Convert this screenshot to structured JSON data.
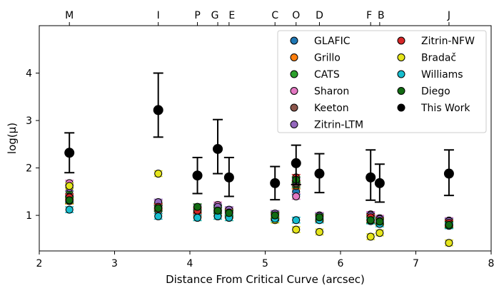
{
  "chart_data": {
    "type": "scatter",
    "title": "",
    "xlabel": "Distance From Critical Curve (arcsec)",
    "ylabel": "log(μ)",
    "xlim": [
      2,
      8
    ],
    "ylim": [
      0.25,
      5.0
    ],
    "x_ticks": [
      2,
      3,
      4,
      5,
      6,
      7,
      8
    ],
    "y_ticks": [
      1,
      2,
      3,
      4
    ],
    "grid": false,
    "legend_position": "top-right",
    "images": [
      {
        "label": "M",
        "x": 2.4
      },
      {
        "label": "I",
        "x": 3.58
      },
      {
        "label": "P",
        "x": 4.1
      },
      {
        "label": "G",
        "x": 4.37
      },
      {
        "label": "E",
        "x": 4.52
      },
      {
        "label": "C",
        "x": 5.13
      },
      {
        "label": "O",
        "x": 5.41
      },
      {
        "label": "D",
        "x": 5.72
      },
      {
        "label": "F",
        "x": 6.4
      },
      {
        "label": "B",
        "x": 6.52
      },
      {
        "label": "J",
        "x": 7.44
      }
    ],
    "series": [
      {
        "name": "GLAFIC",
        "color": "#1f77b4",
        "points": [
          [
            2.4,
            1.35
          ],
          [
            3.58,
            1.15
          ],
          [
            4.1,
            1.08
          ],
          [
            4.37,
            1.12
          ],
          [
            4.52,
            1.04
          ],
          [
            5.13,
            1.0
          ],
          [
            5.41,
            1.5
          ],
          [
            5.72,
            0.95
          ],
          [
            6.4,
            0.95
          ],
          [
            6.52,
            0.88
          ],
          [
            7.44,
            0.85
          ]
        ]
      },
      {
        "name": "Grillo",
        "color": "#ff7f0e",
        "points": [
          [
            2.4,
            1.3
          ],
          [
            3.58,
            1.1
          ],
          [
            4.1,
            1.02
          ],
          [
            4.37,
            1.05
          ],
          [
            4.52,
            1.0
          ],
          [
            5.13,
            0.96
          ],
          [
            5.41,
            1.62
          ],
          [
            5.72,
            0.92
          ],
          [
            6.4,
            0.92
          ],
          [
            6.52,
            0.85
          ],
          [
            7.44,
            0.82
          ]
        ]
      },
      {
        "name": "CATS",
        "color": "#2ca02c",
        "points": [
          [
            2.4,
            1.45
          ],
          [
            3.58,
            1.2
          ],
          [
            4.1,
            1.12
          ],
          [
            4.37,
            1.15
          ],
          [
            4.52,
            1.08
          ],
          [
            5.13,
            1.02
          ],
          [
            5.41,
            1.65
          ],
          [
            5.72,
            0.98
          ],
          [
            6.4,
            0.98
          ],
          [
            6.52,
            0.9
          ],
          [
            7.44,
            0.87
          ]
        ]
      },
      {
        "name": "Sharon",
        "color": "#e377c2",
        "points": [
          [
            2.4,
            1.68
          ],
          [
            3.58,
            1.25
          ],
          [
            4.1,
            1.08
          ],
          [
            4.37,
            1.22
          ],
          [
            4.52,
            1.1
          ],
          [
            5.13,
            1.03
          ],
          [
            5.41,
            1.4
          ],
          [
            5.72,
            1.0
          ],
          [
            6.4,
            1.02
          ],
          [
            6.52,
            0.94
          ],
          [
            7.44,
            0.89
          ]
        ]
      },
      {
        "name": "Keeton",
        "color": "#8c564b",
        "points": [
          [
            2.4,
            1.4
          ],
          [
            3.58,
            1.1
          ],
          [
            4.1,
            1.05
          ],
          [
            4.37,
            1.05
          ],
          [
            4.52,
            1.02
          ],
          [
            5.13,
            0.97
          ],
          [
            5.41,
            1.68
          ],
          [
            5.72,
            0.93
          ],
          [
            6.4,
            0.9
          ],
          [
            6.52,
            0.86
          ],
          [
            7.44,
            0.8
          ]
        ]
      },
      {
        "name": "Zitrin-LTM",
        "color": "#9467bd",
        "points": [
          [
            2.4,
            1.58
          ],
          [
            3.58,
            1.28
          ],
          [
            4.1,
            1.15
          ],
          [
            4.37,
            1.18
          ],
          [
            4.52,
            1.12
          ],
          [
            5.13,
            1.04
          ],
          [
            5.41,
            1.72
          ],
          [
            5.72,
            0.99
          ],
          [
            6.4,
            1.0
          ],
          [
            6.52,
            0.92
          ],
          [
            7.44,
            0.88
          ]
        ]
      },
      {
        "name": "Zitrin-NFW",
        "color": "#d62728",
        "points": [
          [
            2.4,
            1.38
          ],
          [
            3.58,
            1.18
          ],
          [
            4.1,
            1.1
          ],
          [
            4.37,
            1.1
          ],
          [
            4.52,
            1.06
          ],
          [
            5.13,
            0.99
          ],
          [
            5.41,
            1.8
          ],
          [
            5.72,
            0.95
          ],
          [
            6.4,
            0.96
          ],
          [
            6.52,
            0.88
          ],
          [
            7.44,
            0.84
          ]
        ]
      },
      {
        "name": "Bradač",
        "color": "#e5e51a",
        "points": [
          [
            2.4,
            1.62
          ],
          [
            3.58,
            1.88
          ],
          [
            4.1,
            0.95
          ],
          [
            4.37,
            0.98
          ],
          [
            4.52,
            0.95
          ],
          [
            5.13,
            0.9
          ],
          [
            5.41,
            0.7
          ],
          [
            5.72,
            0.65
          ],
          [
            6.4,
            0.55
          ],
          [
            6.52,
            0.63
          ],
          [
            7.44,
            0.42
          ]
        ]
      },
      {
        "name": "Williams",
        "color": "#17becf",
        "points": [
          [
            2.4,
            1.12
          ],
          [
            3.58,
            0.98
          ],
          [
            4.1,
            0.95
          ],
          [
            4.37,
            0.98
          ],
          [
            4.52,
            0.95
          ],
          [
            5.13,
            0.93
          ],
          [
            5.41,
            0.9
          ],
          [
            5.72,
            0.9
          ],
          [
            6.4,
            0.88
          ],
          [
            6.52,
            0.82
          ],
          [
            7.44,
            0.78
          ]
        ]
      },
      {
        "name": "Diego",
        "color": "#126b12",
        "points": [
          [
            2.4,
            1.32
          ],
          [
            3.58,
            1.15
          ],
          [
            4.1,
            1.18
          ],
          [
            4.37,
            1.1
          ],
          [
            4.52,
            1.05
          ],
          [
            5.13,
            1.0
          ],
          [
            5.41,
            1.75
          ],
          [
            5.72,
            0.96
          ],
          [
            6.4,
            0.9
          ],
          [
            6.52,
            0.87
          ],
          [
            7.44,
            0.8
          ]
        ]
      },
      {
        "name": "This Work",
        "color": "#000000",
        "points": [
          [
            2.4,
            2.32
          ],
          [
            3.58,
            3.22
          ],
          [
            4.1,
            1.84
          ],
          [
            4.37,
            2.4
          ],
          [
            4.52,
            1.8
          ],
          [
            5.13,
            1.68
          ],
          [
            5.41,
            2.1
          ],
          [
            5.72,
            1.88
          ],
          [
            6.4,
            1.8
          ],
          [
            6.52,
            1.68
          ],
          [
            7.44,
            1.88
          ]
        ],
        "errors": [
          [
            0.42,
            0.42
          ],
          [
            0.57,
            0.78
          ],
          [
            0.38,
            0.38
          ],
          [
            0.52,
            0.62
          ],
          [
            0.4,
            0.42
          ],
          [
            0.35,
            0.35
          ],
          [
            0.45,
            0.38
          ],
          [
            0.4,
            0.42
          ],
          [
            0.48,
            0.58
          ],
          [
            0.4,
            0.4
          ],
          [
            0.46,
            0.5
          ]
        ]
      }
    ]
  }
}
